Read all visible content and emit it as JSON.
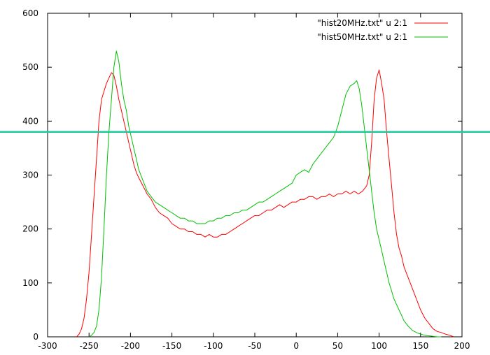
{
  "chart_data": {
    "type": "line",
    "title": "",
    "xlabel": "",
    "ylabel": "",
    "xlim": [
      -300,
      200
    ],
    "ylim": [
      0,
      600
    ],
    "xticks": [
      -300,
      -250,
      -200,
      -150,
      -100,
      -50,
      0,
      50,
      100,
      150,
      200
    ],
    "yticks": [
      0,
      100,
      200,
      300,
      400,
      500,
      600
    ],
    "grid": false,
    "legend_position": "top-right",
    "series": [
      {
        "name": "\"hist20MHz.txt\" u 2:1",
        "color": "#ff0000",
        "x": [
          -265,
          -262,
          -259,
          -256,
          -253,
          -250,
          -247,
          -244,
          -241,
          -238,
          -235,
          -232,
          -229,
          -226,
          -223,
          -220,
          -217,
          -214,
          -211,
          -208,
          -205,
          -202,
          -199,
          -196,
          -193,
          -190,
          -185,
          -180,
          -175,
          -170,
          -165,
          -160,
          -155,
          -150,
          -145,
          -140,
          -135,
          -130,
          -125,
          -120,
          -115,
          -110,
          -105,
          -100,
          -95,
          -90,
          -85,
          -80,
          -75,
          -70,
          -65,
          -60,
          -55,
          -50,
          -45,
          -40,
          -35,
          -30,
          -25,
          -20,
          -15,
          -10,
          -5,
          0,
          5,
          10,
          15,
          20,
          25,
          30,
          35,
          40,
          45,
          50,
          55,
          60,
          65,
          70,
          75,
          80,
          85,
          88,
          91,
          94,
          97,
          100,
          103,
          106,
          109,
          112,
          115,
          118,
          121,
          124,
          127,
          130,
          135,
          140,
          145,
          150,
          155,
          160,
          165,
          170,
          175,
          180,
          185,
          190
        ],
        "y": [
          0,
          5,
          15,
          35,
          70,
          120,
          190,
          260,
          330,
          400,
          440,
          455,
          470,
          480,
          490,
          485,
          465,
          440,
          420,
          400,
          380,
          360,
          340,
          320,
          305,
          295,
          280,
          265,
          255,
          240,
          230,
          225,
          220,
          210,
          205,
          200,
          200,
          195,
          195,
          190,
          190,
          185,
          190,
          185,
          185,
          190,
          190,
          195,
          200,
          205,
          210,
          215,
          220,
          225,
          225,
          230,
          235,
          235,
          240,
          245,
          240,
          245,
          250,
          250,
          255,
          255,
          260,
          260,
          255,
          260,
          260,
          265,
          260,
          265,
          265,
          270,
          265,
          270,
          265,
          270,
          280,
          300,
          360,
          440,
          480,
          495,
          470,
          440,
          380,
          330,
          280,
          230,
          190,
          165,
          150,
          130,
          110,
          90,
          70,
          50,
          35,
          25,
          15,
          10,
          8,
          5,
          3,
          0
        ]
      },
      {
        "name": "\"hist50MHz.txt\" u 2:1",
        "color": "#00c000",
        "x": [
          -250,
          -247,
          -244,
          -241,
          -238,
          -235,
          -232,
          -229,
          -226,
          -223,
          -220,
          -217,
          -214,
          -211,
          -208,
          -205,
          -202,
          -199,
          -196,
          -193,
          -190,
          -185,
          -180,
          -175,
          -170,
          -165,
          -160,
          -155,
          -150,
          -145,
          -140,
          -135,
          -130,
          -125,
          -120,
          -115,
          -110,
          -105,
          -100,
          -95,
          -90,
          -85,
          -80,
          -75,
          -70,
          -65,
          -60,
          -55,
          -50,
          -45,
          -40,
          -35,
          -30,
          -25,
          -20,
          -15,
          -10,
          -5,
          0,
          5,
          10,
          15,
          20,
          25,
          30,
          35,
          40,
          45,
          50,
          55,
          60,
          65,
          70,
          73,
          76,
          79,
          82,
          85,
          88,
          91,
          94,
          97,
          100,
          103,
          106,
          109,
          112,
          115,
          118,
          121,
          124,
          127,
          130,
          135,
          140,
          145,
          150,
          155,
          160,
          165,
          170,
          175
        ],
        "y": [
          0,
          3,
          8,
          20,
          50,
          110,
          200,
          300,
          380,
          440,
          500,
          530,
          510,
          470,
          440,
          420,
          390,
          370,
          350,
          330,
          310,
          290,
          270,
          260,
          250,
          245,
          240,
          235,
          230,
          225,
          220,
          220,
          215,
          215,
          210,
          210,
          210,
          215,
          215,
          220,
          220,
          225,
          225,
          230,
          230,
          235,
          235,
          240,
          245,
          250,
          250,
          255,
          260,
          265,
          270,
          275,
          280,
          285,
          300,
          305,
          310,
          305,
          320,
          330,
          340,
          350,
          360,
          370,
          390,
          420,
          450,
          465,
          470,
          475,
          460,
          430,
          390,
          350,
          310,
          270,
          230,
          200,
          180,
          160,
          140,
          120,
          100,
          85,
          70,
          60,
          50,
          40,
          30,
          20,
          12,
          8,
          5,
          3,
          2,
          1,
          0,
          0
        ]
      }
    ],
    "annotations": [
      {
        "type": "horizontal-line",
        "y": 380,
        "color": "#20c8a0"
      }
    ]
  }
}
